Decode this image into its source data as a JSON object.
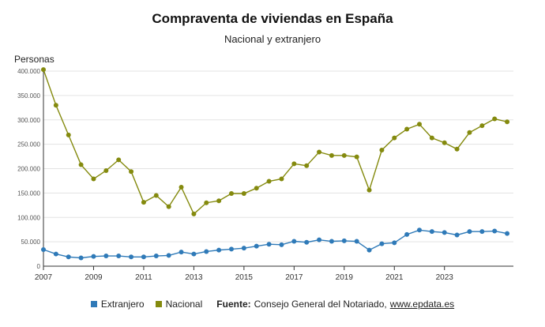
{
  "chart_data": {
    "type": "line",
    "title": "Compraventa de viviendas en España",
    "subtitle": "Nacional y extranjero",
    "ylabel": "Personas",
    "xlabel": "",
    "xlim": [
      2007.0,
      2025.75
    ],
    "ylim": [
      0,
      400000
    ],
    "y_ticks": [
      0,
      50000,
      100000,
      150000,
      200000,
      250000,
      300000,
      350000,
      400000
    ],
    "y_tick_labels": [
      "0",
      "50.000",
      "100.000",
      "150.000",
      "200.000",
      "250.000",
      "300.000",
      "350.000",
      "400.000"
    ],
    "x_ticks": [
      2007,
      2009,
      2011,
      2013,
      2015,
      2017,
      2019,
      2021,
      2023
    ],
    "x_tick_labels": [
      "2007",
      "2009",
      "2011",
      "2013",
      "2015",
      "2017",
      "2019",
      "2021",
      "2023"
    ],
    "grid": true,
    "legend_position": "bottom",
    "x": [
      2007.0,
      2007.5,
      2008.0,
      2008.5,
      2009.0,
      2009.5,
      2010.0,
      2010.5,
      2011.0,
      2011.5,
      2012.0,
      2012.5,
      2013.0,
      2013.5,
      2014.0,
      2014.5,
      2015.0,
      2015.5,
      2016.0,
      2016.5,
      2017.0,
      2017.5,
      2018.0,
      2018.5,
      2019.0,
      2019.5,
      2020.0,
      2020.5,
      2021.0,
      2021.5,
      2022.0,
      2022.5,
      2023.0,
      2023.5,
      2024.0,
      2024.5,
      2025.0,
      2025.5
    ],
    "series": [
      {
        "name": "Extranjero",
        "color": "#2f7ab8",
        "values": [
          34000,
          25000,
          19000,
          17000,
          20000,
          21000,
          21000,
          19000,
          19000,
          21000,
          22000,
          29000,
          25000,
          30000,
          33000,
          35000,
          37000,
          41000,
          45000,
          44000,
          51000,
          49000,
          54000,
          51000,
          52000,
          51000,
          33000,
          46000,
          48000,
          65000,
          74000,
          71000,
          69000,
          64000,
          71000,
          71000,
          72000,
          67000
        ]
      },
      {
        "name": "Nacional",
        "color": "#848a0e",
        "values": [
          403000,
          330000,
          269000,
          208000,
          179000,
          196000,
          218000,
          194000,
          131000,
          145000,
          122000,
          162000,
          107000,
          130000,
          134000,
          149000,
          149000,
          160000,
          174000,
          179000,
          210000,
          206000,
          234000,
          227000,
          227000,
          224000,
          156000,
          238000,
          263000,
          281000,
          291000,
          263000,
          253000,
          240000,
          274000,
          288000,
          302000,
          296000
        ]
      }
    ]
  },
  "legend": {
    "items": [
      {
        "label": "Extranjero",
        "color": "#2f7ab8"
      },
      {
        "label": "Nacional",
        "color": "#848a0e"
      }
    ]
  },
  "source": {
    "label": "Fuente:",
    "text": "Consejo General del Notariado,",
    "link": "www.epdata.es"
  }
}
